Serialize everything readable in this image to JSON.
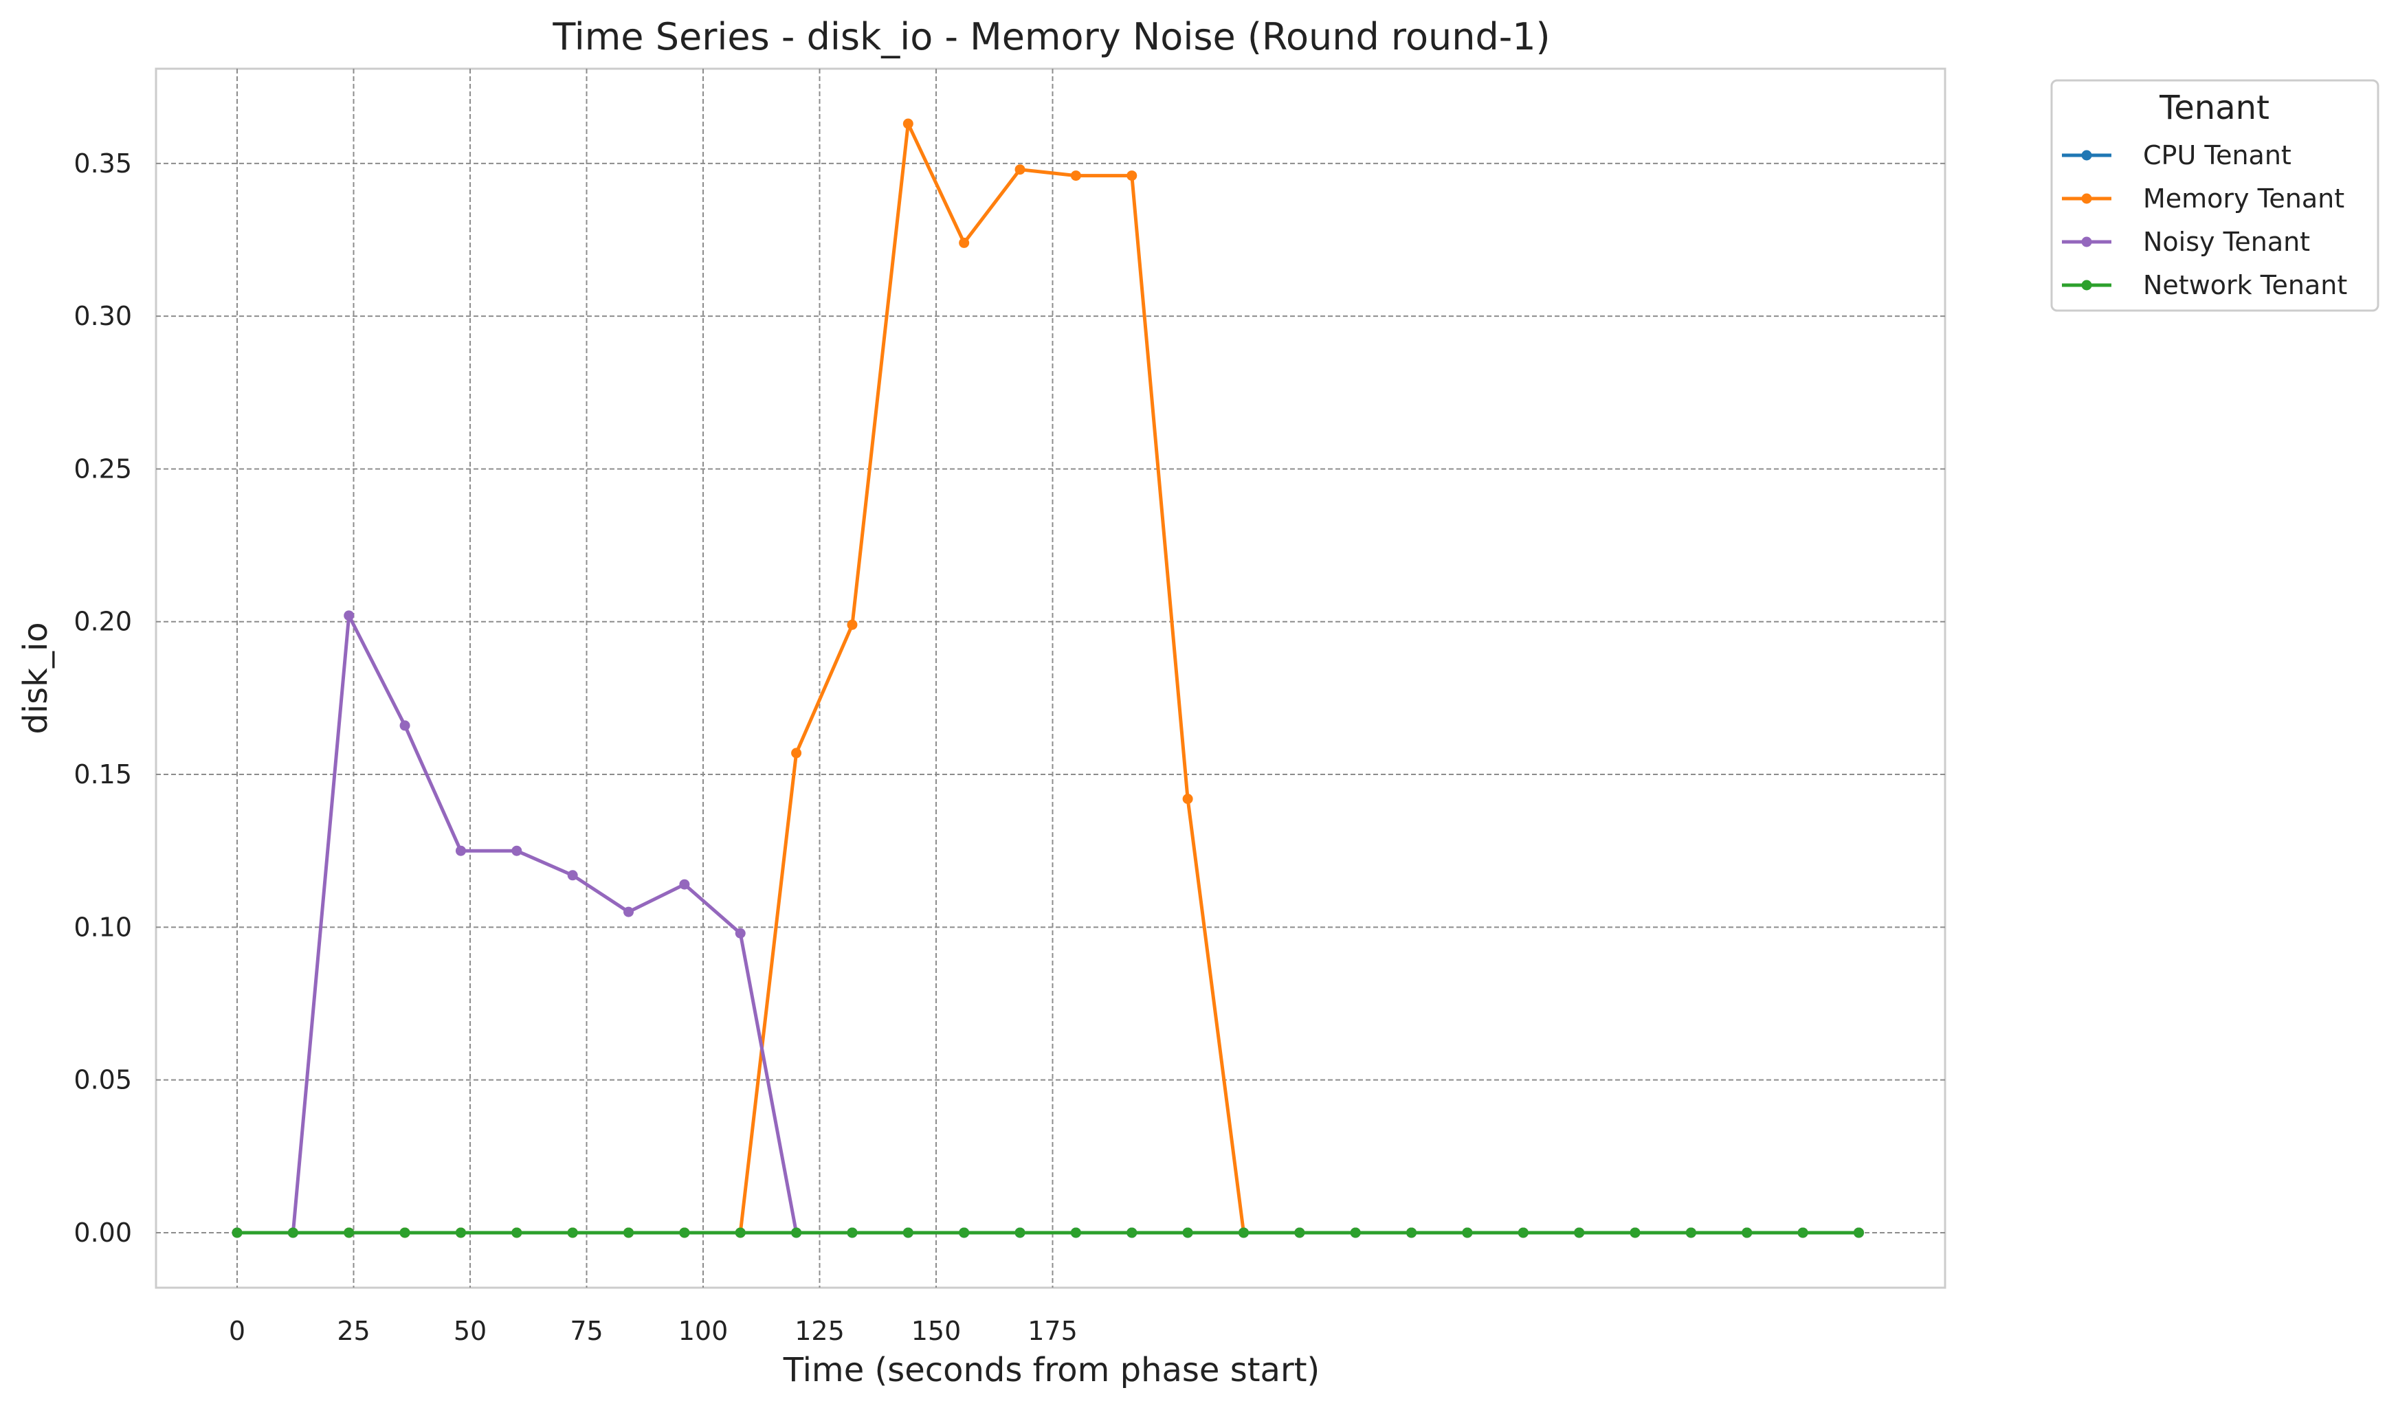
{
  "chart_data": {
    "type": "line",
    "title": "Time Series - disk_io - Memory Noise (Round round-1)",
    "xlabel": "Time (seconds from phase start)",
    "ylabel": "disk_io",
    "xlim": [
      -17.5,
      367.5
    ],
    "ylim": [
      -0.018,
      0.381
    ],
    "x_ticks": [
      0,
      25,
      50,
      75,
      100,
      125,
      150,
      175
    ],
    "y_ticks": [
      0.0,
      0.05,
      0.1,
      0.15,
      0.2,
      0.25,
      0.3,
      0.35
    ],
    "x_tick_labels": [
      "0",
      "25",
      "50",
      "75",
      "100",
      "125",
      "150",
      "175"
    ],
    "y_tick_labels": [
      "0.00",
      "0.05",
      "0.10",
      "0.15",
      "0.20",
      "0.25",
      "0.30",
      "0.35"
    ],
    "grid": true,
    "legend": {
      "title": "Tenant",
      "placement": "outside-top-right"
    },
    "x": [
      0,
      12,
      24,
      36,
      48,
      60,
      72,
      84,
      96,
      108,
      120,
      132,
      144,
      156,
      168,
      180,
      192,
      204,
      216,
      228,
      240,
      252,
      264,
      276,
      288,
      300,
      312,
      324,
      336,
      348
    ],
    "series": [
      {
        "name": "CPU Tenant",
        "color": "#1f77b4",
        "values": [
          0,
          0,
          0,
          0,
          0,
          0,
          0,
          0,
          0,
          0,
          0,
          0,
          0,
          0,
          0,
          0,
          0,
          0,
          0,
          0,
          0,
          0,
          0,
          0,
          0,
          0,
          0,
          0,
          0,
          0
        ]
      },
      {
        "name": "Memory Tenant",
        "color": "#ff7f0e",
        "values": [
          0,
          0,
          0,
          0,
          0,
          0,
          0,
          0,
          0,
          0,
          0.157,
          0.199,
          0.363,
          0.324,
          0.348,
          0.346,
          0.346,
          0.142,
          0,
          0,
          0,
          0,
          0,
          0,
          0,
          0,
          0,
          0,
          0,
          0
        ]
      },
      {
        "name": "Noisy Tenant",
        "color": "#9467bd",
        "values": [
          0,
          0,
          0.202,
          0.166,
          0.125,
          0.125,
          0.117,
          0.105,
          0.114,
          0.098,
          0,
          0,
          0,
          0,
          0,
          0,
          0,
          0,
          0,
          0,
          0,
          0,
          0,
          0,
          0,
          0,
          0,
          0,
          0,
          0
        ]
      },
      {
        "name": "Network Tenant",
        "color": "#2ca02c",
        "values": [
          0,
          0,
          0,
          0,
          0,
          0,
          0,
          0,
          0,
          0,
          0,
          0,
          0,
          0,
          0,
          0,
          0,
          0,
          0,
          0,
          0,
          0,
          0,
          0,
          0,
          0,
          0,
          0,
          0,
          0
        ]
      }
    ]
  }
}
